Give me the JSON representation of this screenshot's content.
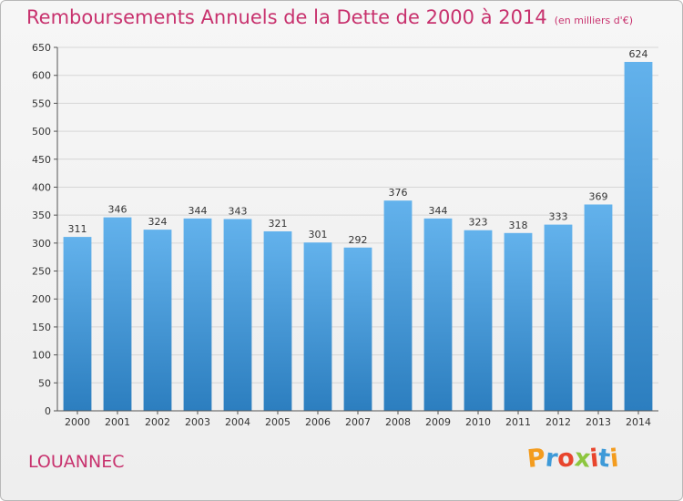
{
  "header": {
    "title": "Remboursements Annuels de la Dette de 2000 à 2014",
    "unit": "(en milliers d'€)"
  },
  "footer": {
    "city": "LOUANNEC",
    "logo_letters": [
      "P",
      "r",
      "o",
      "x",
      "i",
      "t",
      "i"
    ],
    "logo_colors": [
      "#f39c1f",
      "#3e9ad8",
      "#e8452d",
      "#8dc63f",
      "#e8452d",
      "#3e9ad8",
      "#f39c1f"
    ]
  },
  "chart_data": {
    "type": "bar",
    "categories": [
      "2000",
      "2001",
      "2002",
      "2003",
      "2004",
      "2005",
      "2006",
      "2007",
      "2008",
      "2009",
      "2010",
      "2011",
      "2012",
      "2013",
      "2014"
    ],
    "values": [
      311,
      346,
      324,
      344,
      343,
      321,
      301,
      292,
      376,
      344,
      323,
      318,
      333,
      369,
      624
    ],
    "ylim": [
      0,
      650
    ],
    "yticks": [
      0,
      50,
      100,
      150,
      200,
      250,
      300,
      350,
      400,
      450,
      500,
      550,
      600,
      650
    ],
    "grid": true,
    "bar_color": "#3f97dc"
  }
}
